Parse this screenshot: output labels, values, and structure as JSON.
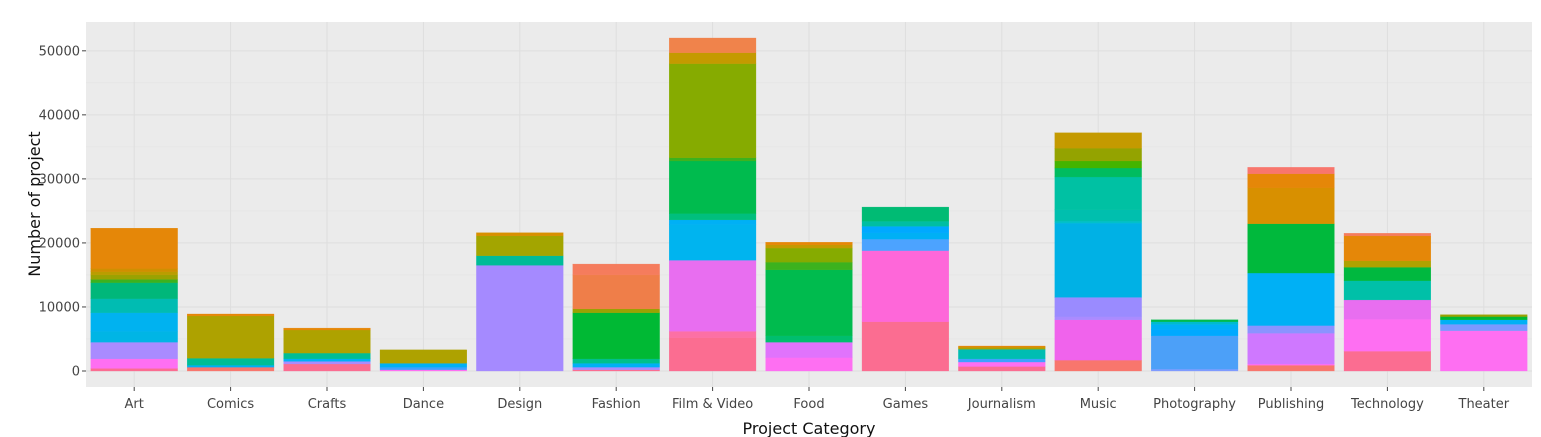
{
  "chart_data": {
    "type": "bar",
    "stacked": true,
    "xlabel": "Project Category",
    "ylabel": "Number of project",
    "ylim": [
      -2500,
      54500
    ],
    "yticks": [
      0,
      10000,
      20000,
      30000,
      40000,
      50000
    ],
    "grid": true,
    "legend": "none",
    "background": "#ebebeb",
    "gridline_color": "#dedede",
    "categories": [
      "Art",
      "Comics",
      "Crafts",
      "Dance",
      "Design",
      "Fashion",
      "Film & Video",
      "Food",
      "Games",
      "Journalism",
      "Music",
      "Photography",
      "Publishing",
      "Technology",
      "Theater"
    ],
    "stacks": [
      [
        [
          400,
          "#fb6d91"
        ],
        [
          1500,
          "#fe6ff2"
        ],
        [
          2600,
          "#a98bff"
        ],
        [
          1700,
          "#00b5e5"
        ],
        [
          2900,
          "#00b2f0"
        ],
        [
          2200,
          "#00bcb2"
        ],
        [
          2500,
          "#00b77a"
        ],
        [
          500,
          "#3cb21e"
        ],
        [
          700,
          "#9aa202"
        ],
        [
          500,
          "#ba9d00"
        ],
        [
          500,
          "#d08f00"
        ],
        [
          6300,
          "#e58708"
        ]
      ],
      [
        [
          600,
          "#f8766d"
        ],
        [
          300,
          "#00b0f5"
        ],
        [
          1100,
          "#00bd95"
        ],
        [
          6600,
          "#aea200"
        ],
        [
          300,
          "#e58708"
        ]
      ],
      [
        [
          1100,
          "#fb6d91"
        ],
        [
          400,
          "#a98bff"
        ],
        [
          400,
          "#00b0f5"
        ],
        [
          900,
          "#00bd95"
        ],
        [
          3600,
          "#aea200"
        ],
        [
          300,
          "#e58708"
        ]
      ],
      [
        [
          200,
          "#fe6ff2"
        ],
        [
          400,
          "#3fa1ff"
        ],
        [
          600,
          "#00b0f5"
        ],
        [
          2100,
          "#aea200"
        ]
      ],
      [
        [
          16500,
          "#a58aff"
        ],
        [
          1500,
          "#00bb97"
        ],
        [
          3100,
          "#a3a500"
        ],
        [
          500,
          "#d89000"
        ]
      ],
      [
        [
          200,
          "#fb6d91"
        ],
        [
          400,
          "#a98bff"
        ],
        [
          600,
          "#00b0f5"
        ],
        [
          700,
          "#00c08b"
        ],
        [
          7200,
          "#00b934"
        ],
        [
          600,
          "#9aa202"
        ],
        [
          5300,
          "#ef7e49"
        ],
        [
          1700,
          "#f57c5d"
        ]
      ],
      [
        [
          5200,
          "#fb6d91"
        ],
        [
          1000,
          "#fc70a5"
        ],
        [
          11100,
          "#e86ef0"
        ],
        [
          5600,
          "#00b4ef"
        ],
        [
          700,
          "#00b0f5"
        ],
        [
          1000,
          "#00bf7d"
        ],
        [
          8200,
          "#00bb4e"
        ],
        [
          500,
          "#3cb21e"
        ],
        [
          14700,
          "#86ab00"
        ],
        [
          1700,
          "#c49a00"
        ],
        [
          2300,
          "#f0834b"
        ]
      ],
      [
        [
          2100,
          "#fe6ff2"
        ],
        [
          2400,
          "#e073fc"
        ],
        [
          1000,
          "#00be6e"
        ],
        [
          10300,
          "#00bb4e"
        ],
        [
          1200,
          "#3cb21e"
        ],
        [
          2200,
          "#86ab00"
        ],
        [
          500,
          "#c49a00"
        ],
        [
          400,
          "#e58708"
        ]
      ],
      [
        [
          7700,
          "#fb6d91"
        ],
        [
          11100,
          "#fe67d9"
        ],
        [
          1800,
          "#4ca3ff"
        ],
        [
          1000,
          "#00b0f5"
        ],
        [
          1000,
          "#00a9ff"
        ],
        [
          800,
          "#00bea3"
        ],
        [
          2200,
          "#00bb74"
        ]
      ],
      [
        [
          700,
          "#fb6d91"
        ],
        [
          700,
          "#fe6ff2"
        ],
        [
          500,
          "#3fa1ff"
        ],
        [
          1500,
          "#00bdb2"
        ],
        [
          300,
          "#aea200"
        ],
        [
          200,
          "#e58708"
        ]
      ],
      [
        [
          1700,
          "#f8766d"
        ],
        [
          6300,
          "#f063ec"
        ],
        [
          500,
          "#aa8bff"
        ],
        [
          3000,
          "#9a8bff"
        ],
        [
          11600,
          "#00b1e5"
        ],
        [
          300,
          "#00c0cb"
        ],
        [
          1800,
          "#00bfae"
        ],
        [
          5100,
          "#00c1a3"
        ],
        [
          1400,
          "#00bc5f"
        ],
        [
          1100,
          "#44b400"
        ],
        [
          2000,
          "#94a300"
        ],
        [
          2400,
          "#c49a00"
        ]
      ],
      [
        [
          300,
          "#7f9bff"
        ],
        [
          5200,
          "#4ca0f8"
        ],
        [
          1000,
          "#00a9ff"
        ],
        [
          800,
          "#00b0f5"
        ],
        [
          400,
          "#00bbcf"
        ],
        [
          300,
          "#00bb4e"
        ]
      ],
      [
        [
          900,
          "#f8766d"
        ],
        [
          200,
          "#fe6ff2"
        ],
        [
          4800,
          "#cf78ff"
        ],
        [
          1200,
          "#8b93ff"
        ],
        [
          8200,
          "#00b0f5"
        ],
        [
          7700,
          "#00b93c"
        ],
        [
          5600,
          "#d89000"
        ],
        [
          2200,
          "#e58708"
        ],
        [
          1000,
          "#f8766d"
        ]
      ],
      [
        [
          3100,
          "#fb6d91"
        ],
        [
          5000,
          "#fe6ff2"
        ],
        [
          3000,
          "#e86ef0"
        ],
        [
          3000,
          "#00c0a8"
        ],
        [
          2100,
          "#00b83f"
        ],
        [
          1000,
          "#aea200"
        ],
        [
          3900,
          "#e58708"
        ],
        [
          400,
          "#f57c5d"
        ]
      ],
      [
        [
          6300,
          "#fe6ff2"
        ],
        [
          1000,
          "#7b98ff"
        ],
        [
          700,
          "#00b0f5"
        ],
        [
          500,
          "#00b934"
        ],
        [
          300,
          "#9aa202"
        ]
      ]
    ]
  }
}
